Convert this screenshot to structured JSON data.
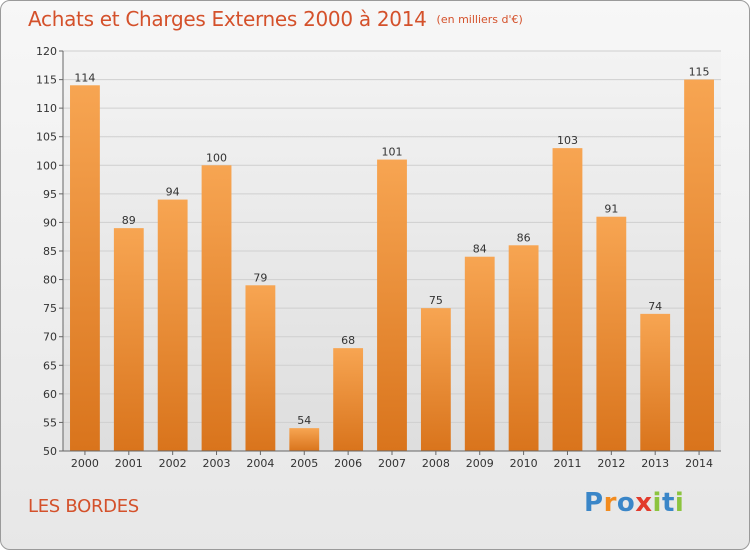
{
  "chart_data": {
    "type": "bar",
    "title": "Achats et Charges Externes 2000 à 2014",
    "subtitle": "(en milliers d'€)",
    "categories": [
      "2000",
      "2001",
      "2002",
      "2003",
      "2004",
      "2005",
      "2006",
      "2007",
      "2008",
      "2009",
      "2010",
      "2011",
      "2012",
      "2013",
      "2014"
    ],
    "values": [
      114,
      89,
      94,
      100,
      79,
      54,
      68,
      101,
      75,
      84,
      86,
      103,
      91,
      74,
      115
    ],
    "ylim": [
      50,
      120
    ],
    "yticks": [
      50,
      55,
      60,
      65,
      70,
      75,
      80,
      85,
      90,
      95,
      100,
      105,
      110,
      115,
      120
    ],
    "grid": true,
    "bar_color_light": "#f7a552",
    "bar_color_dark": "#d9741c"
  },
  "footer": {
    "place": "LES BORDES",
    "brand_letters": [
      {
        "ch": "P",
        "color": "#3a86c8"
      },
      {
        "ch": "r",
        "color": "#f28b1e"
      },
      {
        "ch": "o",
        "color": "#3a86c8"
      },
      {
        "ch": "x",
        "color": "#e23b2c"
      },
      {
        "ch": "i",
        "color": "#8cc43f"
      },
      {
        "ch": "t",
        "color": "#3a86c8"
      },
      {
        "ch": "i",
        "color": "#8cc43f"
      }
    ]
  }
}
